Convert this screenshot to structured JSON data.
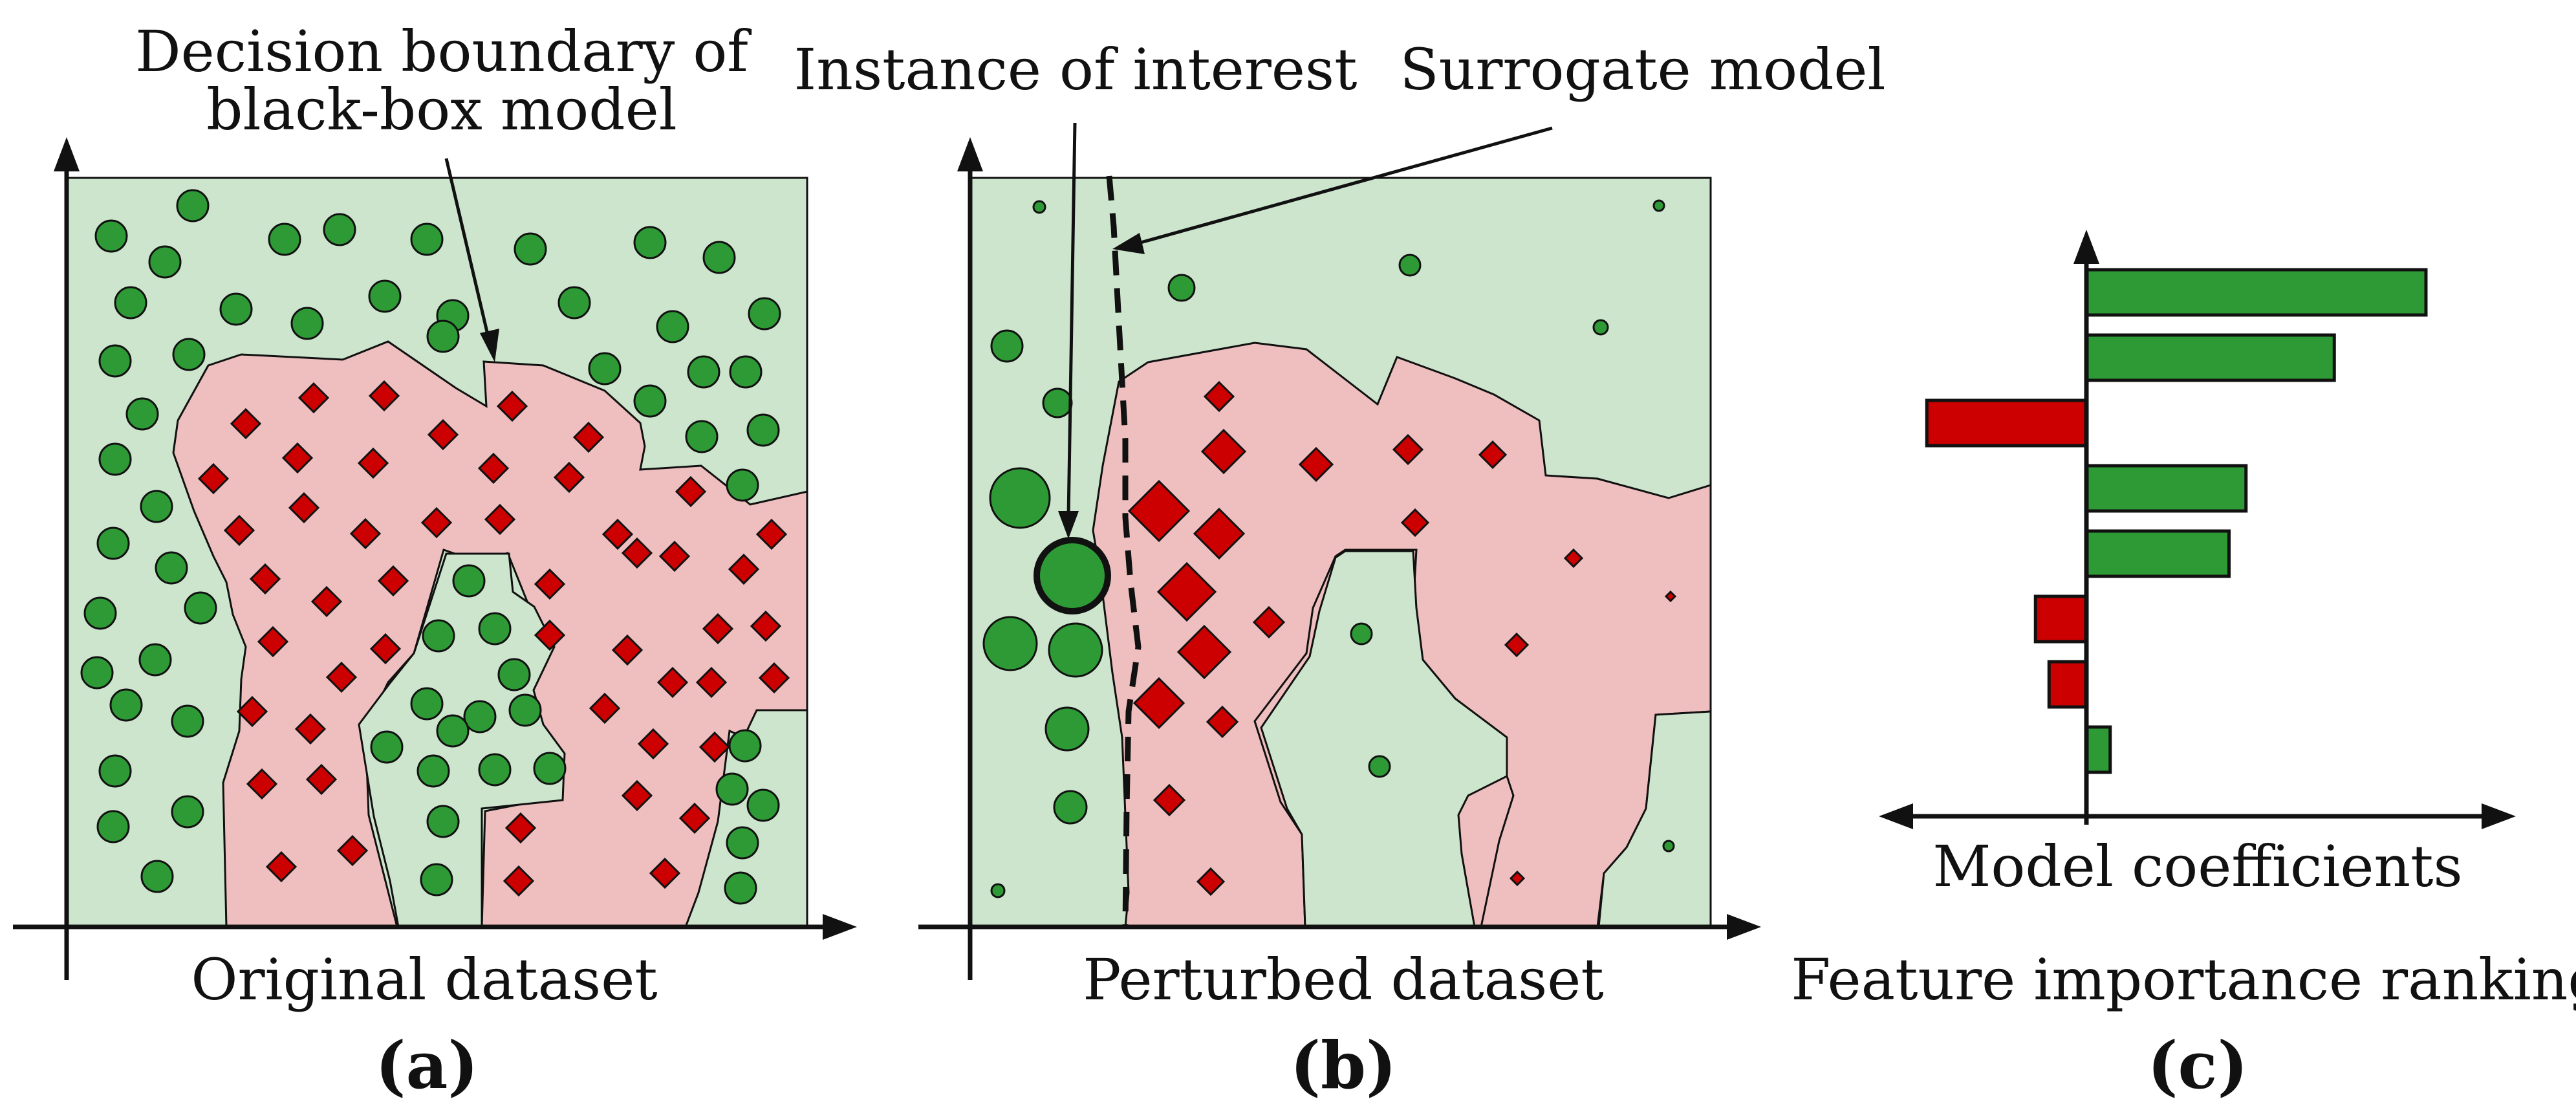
{
  "colors": {
    "green_region": "#cde5cd",
    "red_region": "#efbfbf",
    "green_point": "#2e9a36",
    "red_point": "#cc0000",
    "bar_green": "#2e9a36",
    "bar_red": "#cc0000",
    "line": "#111111"
  },
  "icons": {
    "green_point": "circle",
    "red_point": "diamond"
  },
  "panel_a": {
    "annotation": [
      "Decision boundary of",
      "black-box model"
    ],
    "caption": "Original dataset",
    "letter": "(a)"
  },
  "panel_b": {
    "annotation_instance": "Instance of interest",
    "annotation_surrogate": "Surrogate model",
    "caption": "Perturbed dataset",
    "letter": "(b)"
  },
  "panel_c": {
    "axis_label": "Model coefficients",
    "caption": "Feature importance ranking",
    "letter": "(c)"
  },
  "chart_data": {
    "type": "bar",
    "orientation": "horizontal",
    "xlabel": "Model coefficients",
    "values": [
      1.0,
      0.73,
      -0.47,
      0.47,
      0.42,
      -0.15,
      -0.11,
      0.07
    ],
    "sign_colors": [
      "green",
      "green",
      "red",
      "green",
      "green",
      "red",
      "red",
      "green"
    ]
  }
}
